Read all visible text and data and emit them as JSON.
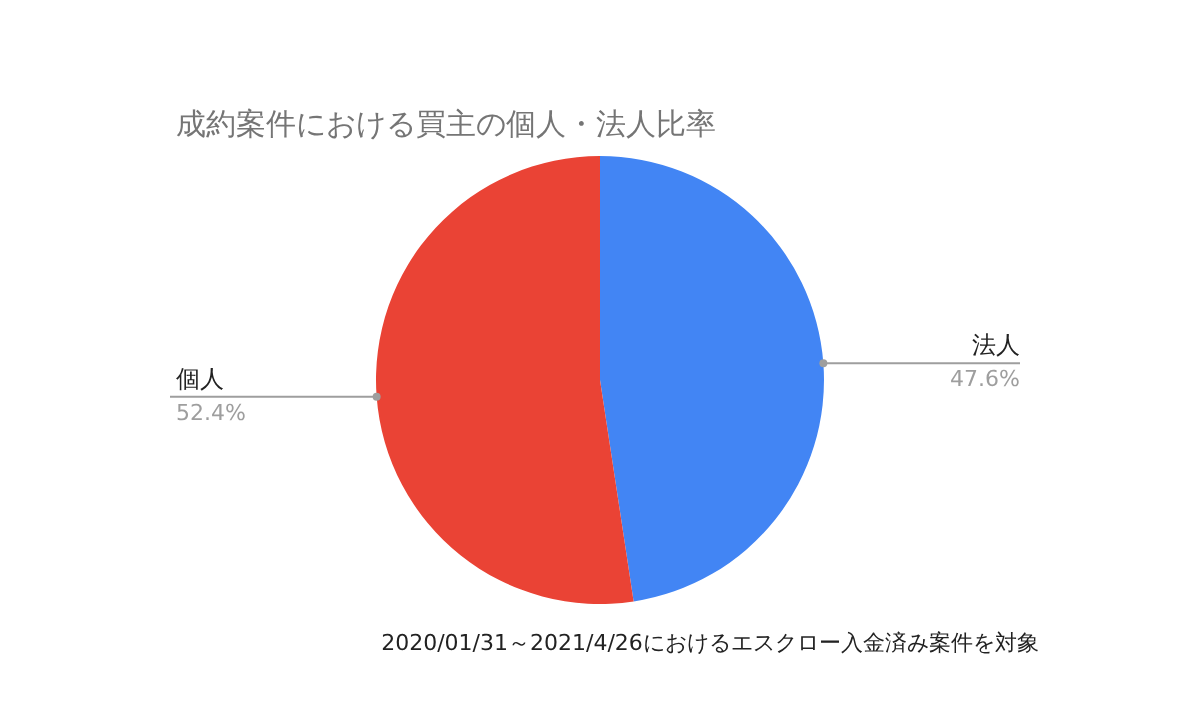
{
  "chart_data": {
    "type": "pie",
    "title": "成約案件における買主の個人・法人比率",
    "categories": [
      "法人",
      "個人"
    ],
    "values": [
      47.6,
      52.4
    ],
    "colors": [
      "#4285f4",
      "#ea4335"
    ],
    "value_labels": [
      "47.6%",
      "52.4%"
    ],
    "legend": false,
    "annotations": [
      "2020/01/31～2021/4/26におけるエスクロー入金済み案件を対象"
    ]
  }
}
